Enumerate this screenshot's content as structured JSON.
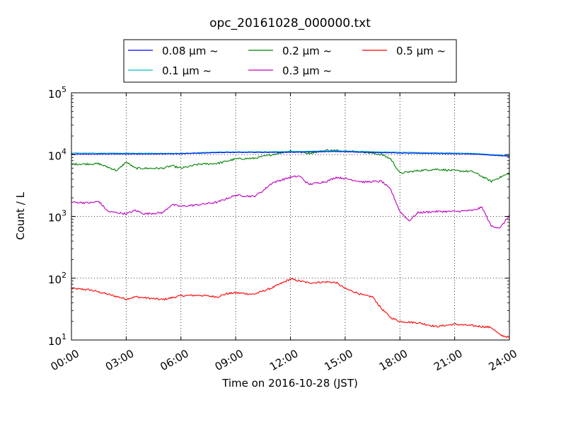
{
  "chart_data": {
    "type": "line",
    "title": "opc_20161028_000000.txt",
    "xlabel": "Time on 2016-10-28 (JST)",
    "ylabel": "Count / L",
    "x_ticks": [
      "00:00",
      "03:00",
      "06:00",
      "09:00",
      "12:00",
      "15:00",
      "18:00",
      "21:00",
      "24:00"
    ],
    "x_range": [
      "00:00",
      "24:00"
    ],
    "y_scale": "log",
    "ylim": [
      10,
      100000
    ],
    "y_ticks": [
      {
        "base": "10",
        "exp": "1"
      },
      {
        "base": "10",
        "exp": "2"
      },
      {
        "base": "10",
        "exp": "3"
      },
      {
        "base": "10",
        "exp": "4"
      },
      {
        "base": "10",
        "exp": "5"
      }
    ],
    "grid": true,
    "legend_position": "top",
    "series": [
      {
        "name": "0.08 μm ~",
        "color": "#0000ff",
        "points": [
          [
            "00:00",
            10200
          ],
          [
            "06:00",
            10300
          ],
          [
            "08:00",
            10800
          ],
          [
            "12:00",
            10900
          ],
          [
            "14:30",
            11200
          ],
          [
            "18:00",
            10600
          ],
          [
            "22:00",
            10200
          ],
          [
            "24:00",
            9400
          ]
        ]
      },
      {
        "name": "0.1 μm ~",
        "color": "#00bfbf",
        "points": [
          [
            "00:00",
            10600
          ],
          [
            "06:00",
            10500
          ],
          [
            "08:00",
            11000
          ],
          [
            "12:00",
            11200
          ],
          [
            "14:30",
            11500
          ],
          [
            "18:00",
            10900
          ],
          [
            "22:00",
            10500
          ],
          [
            "24:00",
            9600
          ]
        ]
      },
      {
        "name": "0.2 μm ~",
        "color": "#008000",
        "points": [
          [
            "00:00",
            7000
          ],
          [
            "01:30",
            7100
          ],
          [
            "02:30",
            5500
          ],
          [
            "03:00",
            7600
          ],
          [
            "03:30",
            6000
          ],
          [
            "05:00",
            6000
          ],
          [
            "05:30",
            6600
          ],
          [
            "06:00",
            6000
          ],
          [
            "07:00",
            7000
          ],
          [
            "08:00",
            7200
          ],
          [
            "09:00",
            8500
          ],
          [
            "10:00",
            8700
          ],
          [
            "11:00",
            10000
          ],
          [
            "12:00",
            11500
          ],
          [
            "13:00",
            10500
          ],
          [
            "14:00",
            11800
          ],
          [
            "15:00",
            11500
          ],
          [
            "16:00",
            11000
          ],
          [
            "17:00",
            10000
          ],
          [
            "17:30",
            8500
          ],
          [
            "18:00",
            5000
          ],
          [
            "19:00",
            5500
          ],
          [
            "20:00",
            5800
          ],
          [
            "21:00",
            5500
          ],
          [
            "22:00",
            5300
          ],
          [
            "23:00",
            3700
          ],
          [
            "24:00",
            5000
          ]
        ]
      },
      {
        "name": "0.3 μm ~",
        "color": "#bf00bf",
        "points": [
          [
            "00:00",
            1700
          ],
          [
            "01:00",
            1650
          ],
          [
            "01:30",
            1750
          ],
          [
            "02:00",
            1200
          ],
          [
            "03:00",
            1100
          ],
          [
            "03:30",
            1250
          ],
          [
            "04:00",
            1100
          ],
          [
            "05:00",
            1150
          ],
          [
            "05:30",
            1550
          ],
          [
            "06:00",
            1450
          ],
          [
            "07:00",
            1550
          ],
          [
            "08:00",
            1700
          ],
          [
            "09:00",
            2200
          ],
          [
            "10:00",
            2100
          ],
          [
            "10:30",
            2600
          ],
          [
            "11:00",
            3500
          ],
          [
            "12:00",
            4300
          ],
          [
            "12:30",
            4500
          ],
          [
            "13:00",
            3300
          ],
          [
            "14:00",
            3700
          ],
          [
            "14:30",
            4300
          ],
          [
            "15:00",
            4100
          ],
          [
            "16:00",
            3600
          ],
          [
            "17:00",
            3700
          ],
          [
            "17:30",
            2700
          ],
          [
            "18:00",
            1200
          ],
          [
            "18:30",
            850
          ],
          [
            "19:00",
            1150
          ],
          [
            "20:00",
            1200
          ],
          [
            "21:00",
            1200
          ],
          [
            "22:00",
            1250
          ],
          [
            "22:30",
            1400
          ],
          [
            "23:00",
            700
          ],
          [
            "23:30",
            650
          ],
          [
            "24:00",
            1050
          ]
        ]
      },
      {
        "name": "0.5 μm ~",
        "color": "#ff0000",
        "points": [
          [
            "00:00",
            68
          ],
          [
            "01:00",
            65
          ],
          [
            "02:00",
            55
          ],
          [
            "03:00",
            46
          ],
          [
            "03:30",
            50
          ],
          [
            "05:00",
            45
          ],
          [
            "06:00",
            52
          ],
          [
            "07:00",
            53
          ],
          [
            "08:00",
            50
          ],
          [
            "08:30",
            56
          ],
          [
            "09:00",
            58
          ],
          [
            "10:00",
            55
          ],
          [
            "11:00",
            70
          ],
          [
            "12:00",
            97
          ],
          [
            "13:00",
            84
          ],
          [
            "14:00",
            87
          ],
          [
            "14:30",
            85
          ],
          [
            "15:00",
            68
          ],
          [
            "16:00",
            53
          ],
          [
            "16:30",
            50
          ],
          [
            "17:00",
            32
          ],
          [
            "17:30",
            23
          ],
          [
            "18:00",
            20
          ],
          [
            "19:00",
            19
          ],
          [
            "20:00",
            16.5
          ],
          [
            "21:00",
            18
          ],
          [
            "22:00",
            17
          ],
          [
            "23:00",
            16
          ],
          [
            "23:30",
            12
          ],
          [
            "24:00",
            11
          ]
        ]
      }
    ]
  }
}
